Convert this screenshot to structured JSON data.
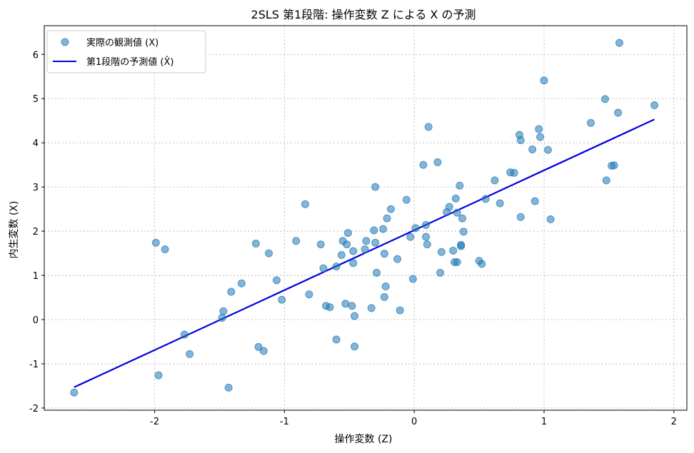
{
  "chart_data": {
    "type": "scatter",
    "title": "2SLS 第1段階: 操作変数 Z による X の予測",
    "xlabel": "操作変数 (Z)",
    "ylabel": "内生変数 (X)",
    "xlim": [
      -2.85,
      2.1
    ],
    "ylim": [
      -2.05,
      6.65
    ],
    "xticks": [
      -2,
      -1,
      0,
      1,
      2
    ],
    "xtick_labels": [
      "-2",
      "-1",
      "0",
      "1",
      "2"
    ],
    "yticks": [
      -2,
      -1,
      0,
      1,
      2,
      3,
      4,
      5,
      6
    ],
    "ytick_labels": [
      "-2",
      "-1",
      "0",
      "1",
      "2",
      "3",
      "4",
      "5",
      "6"
    ],
    "grid": true,
    "legend_position": "top-left",
    "series": [
      {
        "name": "実際の観測値 (X)",
        "kind": "scatter",
        "color": "#1f77b4",
        "points": [
          [
            -2.62,
            -1.65
          ],
          [
            -1.97,
            -1.26
          ],
          [
            -1.99,
            1.74
          ],
          [
            -1.92,
            1.59
          ],
          [
            -1.77,
            -0.34
          ],
          [
            -1.73,
            -0.78
          ],
          [
            -1.48,
            0.04
          ],
          [
            -1.47,
            0.19
          ],
          [
            -1.43,
            -1.54
          ],
          [
            -1.41,
            0.63
          ],
          [
            -1.33,
            0.82
          ],
          [
            -1.22,
            1.72
          ],
          [
            -1.2,
            -0.62
          ],
          [
            -1.16,
            -0.71
          ],
          [
            -1.12,
            1.5
          ],
          [
            -1.06,
            0.89
          ],
          [
            -1.02,
            0.45
          ],
          [
            -0.91,
            1.78
          ],
          [
            -0.84,
            2.61
          ],
          [
            -0.81,
            0.57
          ],
          [
            -0.72,
            1.7
          ],
          [
            -0.7,
            1.16
          ],
          [
            -0.68,
            0.31
          ],
          [
            -0.65,
            0.28
          ],
          [
            -0.6,
            1.2
          ],
          [
            -0.6,
            -0.45
          ],
          [
            -0.56,
            1.46
          ],
          [
            -0.55,
            1.78
          ],
          [
            -0.53,
            0.36
          ],
          [
            -0.52,
            1.7
          ],
          [
            -0.51,
            1.96
          ],
          [
            -0.48,
            0.31
          ],
          [
            -0.47,
            1.55
          ],
          [
            -0.47,
            1.28
          ],
          [
            -0.46,
            0.08
          ],
          [
            -0.46,
            -0.61
          ],
          [
            -0.38,
            1.59
          ],
          [
            -0.37,
            1.78
          ],
          [
            -0.33,
            0.26
          ],
          [
            -0.31,
            2.02
          ],
          [
            -0.3,
            1.74
          ],
          [
            -0.3,
            3.0
          ],
          [
            -0.29,
            1.06
          ],
          [
            -0.24,
            2.05
          ],
          [
            -0.23,
            1.49
          ],
          [
            -0.23,
            0.51
          ],
          [
            -0.22,
            0.75
          ],
          [
            -0.21,
            2.29
          ],
          [
            -0.18,
            2.5
          ],
          [
            -0.13,
            1.37
          ],
          [
            -0.11,
            0.21
          ],
          [
            -0.06,
            2.71
          ],
          [
            -0.03,
            1.87
          ],
          [
            -0.01,
            0.92
          ],
          [
            0.01,
            2.07
          ],
          [
            0.07,
            3.5
          ],
          [
            0.09,
            2.14
          ],
          [
            0.09,
            1.87
          ],
          [
            0.1,
            1.7
          ],
          [
            0.11,
            4.36
          ],
          [
            0.18,
            3.56
          ],
          [
            0.2,
            1.06
          ],
          [
            0.21,
            1.53
          ],
          [
            0.25,
            2.43
          ],
          [
            0.27,
            2.55
          ],
          [
            0.3,
            1.56
          ],
          [
            0.31,
            1.3
          ],
          [
            0.32,
            2.74
          ],
          [
            0.33,
            1.3
          ],
          [
            0.33,
            2.42
          ],
          [
            0.35,
            3.03
          ],
          [
            0.36,
            1.69
          ],
          [
            0.36,
            1.66
          ],
          [
            0.37,
            2.29
          ],
          [
            0.38,
            1.99
          ],
          [
            0.5,
            1.33
          ],
          [
            0.52,
            1.26
          ],
          [
            0.55,
            2.73
          ],
          [
            0.62,
            3.15
          ],
          [
            0.66,
            2.63
          ],
          [
            0.74,
            3.33
          ],
          [
            0.77,
            3.32
          ],
          [
            0.81,
            4.18
          ],
          [
            0.82,
            2.32
          ],
          [
            0.82,
            4.06
          ],
          [
            0.91,
            3.85
          ],
          [
            0.93,
            2.68
          ],
          [
            0.96,
            4.31
          ],
          [
            0.97,
            4.13
          ],
          [
            1.0,
            5.41
          ],
          [
            1.03,
            3.84
          ],
          [
            1.05,
            2.27
          ],
          [
            1.36,
            4.45
          ],
          [
            1.47,
            4.99
          ],
          [
            1.48,
            3.15
          ],
          [
            1.52,
            3.48
          ],
          [
            1.54,
            3.49
          ],
          [
            1.57,
            4.68
          ],
          [
            1.58,
            6.26
          ],
          [
            1.85,
            4.85
          ]
        ]
      },
      {
        "name": "第1段階の予測値 (X̂)",
        "kind": "line",
        "color": "#0000dd",
        "points": [
          [
            -2.62,
            -1.53
          ],
          [
            1.85,
            4.53
          ]
        ]
      }
    ]
  }
}
